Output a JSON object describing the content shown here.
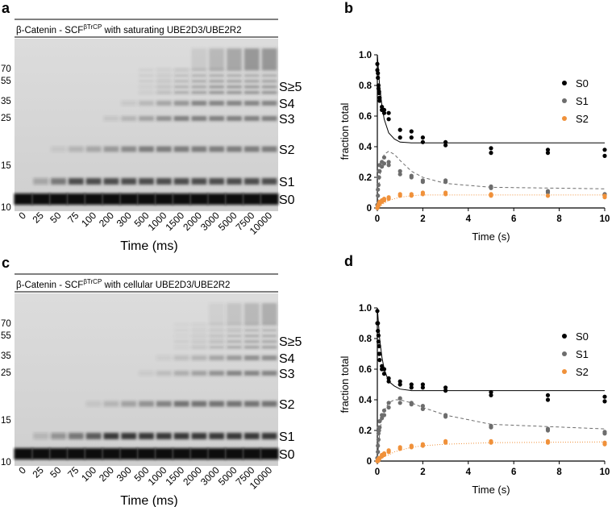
{
  "gels": [
    {
      "panel": "a",
      "title": "β-Catenin - SCF",
      "title_sup": "βTrCP",
      "title_rest": " with saturating UBE2D3/UBE2R2",
      "markers": [
        "70",
        "55",
        "35",
        "25",
        "15",
        "10"
      ],
      "bands": [
        "S≥5",
        "S4",
        "S3",
        "S2",
        "S1",
        "S0"
      ],
      "lanes": [
        "0",
        "25",
        "50",
        "75",
        "100",
        "200",
        "300",
        "500",
        "1000",
        "1500",
        "2000",
        "3000",
        "5000",
        "7500",
        "10000"
      ],
      "xlabel": "Time (ms)"
    },
    {
      "panel": "c",
      "title": "β-Catenin - SCF",
      "title_sup": "βTrCP",
      "title_rest": " with cellular UBE2D3/UBE2R2",
      "markers": [
        "70",
        "55",
        "35",
        "25",
        "15",
        "10"
      ],
      "bands": [
        "S≥5",
        "S4",
        "S3",
        "S2",
        "S1",
        "S0"
      ],
      "lanes": [
        "0",
        "25",
        "50",
        "75",
        "100",
        "200",
        "300",
        "500",
        "1000",
        "1500",
        "2000",
        "3000",
        "5000",
        "7500",
        "10000"
      ],
      "xlabel": "Time (ms)"
    }
  ],
  "chart_data": [
    {
      "type": "scatter",
      "panel": "b",
      "xlabel": "Time (s)",
      "ylabel": "fraction total",
      "x": [
        0,
        0,
        0.025,
        0.025,
        0.05,
        0.05,
        0.075,
        0.075,
        0.1,
        0.1,
        0.2,
        0.2,
        0.3,
        0.3,
        0.5,
        0.5,
        1,
        1,
        1.5,
        1.5,
        2,
        2,
        3,
        3,
        5,
        5,
        7.5,
        7.5,
        10,
        10
      ],
      "series": [
        {
          "name": "S0",
          "color": "#000000",
          "values": [
            0.94,
            0.9,
            0.88,
            0.85,
            0.8,
            0.78,
            0.76,
            0.75,
            0.72,
            0.7,
            0.66,
            0.64,
            0.64,
            0.62,
            0.62,
            0.58,
            0.51,
            0.46,
            0.5,
            0.46,
            0.46,
            0.43,
            0.43,
            0.41,
            0.39,
            0.36,
            0.38,
            0.36,
            0.38,
            0.34
          ]
        },
        {
          "name": "S1",
          "color": "#6d6d6d",
          "values": [
            0.02,
            0,
            0.12,
            0.08,
            0.2,
            0.15,
            0.24,
            0.2,
            0.28,
            0.24,
            0.3,
            0.27,
            0.33,
            0.29,
            0.3,
            0.28,
            0.24,
            0.22,
            0.21,
            0.2,
            0.18,
            0.17,
            0.18,
            0.17,
            0.14,
            0.13,
            0.11,
            0.1,
            0.09,
            0.08
          ]
        },
        {
          "name": "S2",
          "color": "#f0913a",
          "values": [
            0,
            0,
            0.01,
            0.01,
            0.02,
            0.02,
            0.03,
            0.02,
            0.04,
            0.03,
            0.05,
            0.04,
            0.06,
            0.05,
            0.07,
            0.06,
            0.09,
            0.08,
            0.09,
            0.08,
            0.1,
            0.09,
            0.1,
            0.09,
            0.09,
            0.08,
            0.08,
            0.08,
            0.08,
            0.07
          ]
        }
      ],
      "fit_x": [
        0,
        0.1,
        0.2,
        0.3,
        0.5,
        0.75,
        1,
        1.5,
        2,
        3,
        5,
        10
      ],
      "fits": [
        {
          "color": "#000000",
          "dash": "none",
          "values": [
            1,
            0.8,
            0.67,
            0.58,
            0.49,
            0.45,
            0.43,
            0.425,
            0.425,
            0.425,
            0.425,
            0.425
          ]
        },
        {
          "color": "#6d6d6d",
          "dash": "4 3",
          "values": [
            0,
            0.2,
            0.3,
            0.35,
            0.37,
            0.35,
            0.31,
            0.24,
            0.2,
            0.16,
            0.135,
            0.125
          ]
        },
        {
          "color": "#f0913a",
          "dash": "1 2",
          "values": [
            0,
            0.01,
            0.02,
            0.03,
            0.05,
            0.06,
            0.07,
            0.08,
            0.085,
            0.085,
            0.085,
            0.085
          ]
        }
      ],
      "xlim": [
        0,
        10
      ],
      "xticks": [
        0,
        2,
        4,
        6,
        8,
        10
      ],
      "ylim": [
        0,
        1
      ],
      "yticks": [
        0,
        {
          "value": 0.2,
          "label": "0.2"
        },
        {
          "value": 0.4,
          "label": "0.4"
        },
        {
          "value": 0.6,
          "label": "0.6"
        },
        {
          "value": 0.8,
          "label": "0.8"
        },
        {
          "value": 1,
          "label": "1.0"
        }
      ],
      "legend": "upper-right"
    },
    {
      "type": "scatter",
      "panel": "d",
      "xlabel": "Time (s)",
      "ylabel": "fraction total",
      "x": [
        0,
        0,
        0.025,
        0.025,
        0.05,
        0.05,
        0.075,
        0.075,
        0.1,
        0.1,
        0.2,
        0.2,
        0.3,
        0.3,
        0.5,
        0.5,
        1,
        1,
        1.5,
        1.5,
        2,
        2,
        3,
        3,
        5,
        5,
        7.5,
        7.5,
        10,
        10
      ],
      "series": [
        {
          "name": "S0",
          "color": "#000000",
          "values": [
            0.98,
            0.9,
            0.9,
            0.85,
            0.82,
            0.78,
            0.75,
            0.7,
            0.7,
            0.66,
            0.62,
            0.6,
            0.6,
            0.57,
            0.54,
            0.52,
            0.52,
            0.5,
            0.5,
            0.48,
            0.5,
            0.48,
            0.48,
            0.46,
            0.45,
            0.43,
            0.43,
            0.4,
            0.42,
            0.39
          ]
        },
        {
          "name": "S1",
          "color": "#6d6d6d",
          "values": [
            0.02,
            0,
            0.1,
            0.06,
            0.18,
            0.14,
            0.22,
            0.2,
            0.26,
            0.22,
            0.3,
            0.28,
            0.33,
            0.3,
            0.38,
            0.35,
            0.41,
            0.38,
            0.38,
            0.37,
            0.36,
            0.34,
            0.3,
            0.29,
            0.23,
            0.22,
            0.21,
            0.2,
            0.19,
            0.18
          ]
        },
        {
          "name": "S2",
          "color": "#f0913a",
          "values": [
            0,
            0,
            0.01,
            0,
            0.01,
            0.01,
            0.02,
            0.01,
            0.02,
            0.02,
            0.04,
            0.03,
            0.05,
            0.04,
            0.07,
            0.06,
            0.09,
            0.08,
            0.1,
            0.09,
            0.11,
            0.1,
            0.13,
            0.12,
            0.13,
            0.12,
            0.13,
            0.12,
            0.12,
            0.11
          ]
        }
      ],
      "fit_x": [
        0,
        0.1,
        0.2,
        0.3,
        0.5,
        0.75,
        1,
        1.5,
        2,
        3,
        5,
        10
      ],
      "fits": [
        {
          "color": "#000000",
          "dash": "none",
          "values": [
            1,
            0.8,
            0.68,
            0.6,
            0.52,
            0.49,
            0.47,
            0.46,
            0.46,
            0.46,
            0.46,
            0.46
          ]
        },
        {
          "color": "#6d6d6d",
          "dash": "4 3",
          "values": [
            0,
            0.18,
            0.28,
            0.33,
            0.38,
            0.4,
            0.4,
            0.38,
            0.35,
            0.3,
            0.24,
            0.21
          ]
        },
        {
          "color": "#f0913a",
          "dash": "1 2",
          "values": [
            0,
            0.01,
            0.02,
            0.03,
            0.04,
            0.06,
            0.07,
            0.09,
            0.1,
            0.11,
            0.12,
            0.125
          ]
        }
      ],
      "xlim": [
        0,
        10
      ],
      "xticks": [
        0,
        2,
        4,
        6,
        8,
        10
      ],
      "ylim": [
        0,
        1
      ],
      "yticks": [
        0,
        {
          "value": 0.2,
          "label": "0.2"
        },
        {
          "value": 0.4,
          "label": "0.4"
        },
        {
          "value": 0.6,
          "label": "0.6"
        },
        {
          "value": 0.8,
          "label": "0.8"
        },
        {
          "value": 1,
          "label": "1.0"
        }
      ],
      "legend": "upper-right"
    }
  ]
}
